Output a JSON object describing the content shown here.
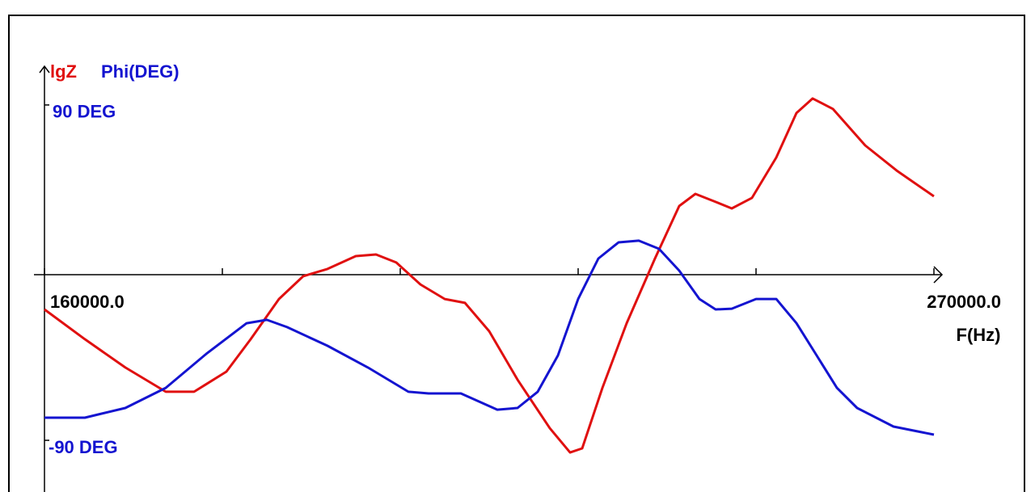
{
  "chart_data": {
    "type": "line",
    "x_label": "F(Hz)",
    "xlim": [
      160000,
      270000
    ],
    "xticks": [
      {
        "value": 160000,
        "label": "160000.0"
      },
      {
        "value": 270000,
        "label": "270000.0"
      }
    ],
    "x_tick_marks": [
      182000,
      204000,
      226000,
      248000
    ],
    "ylim": [
      -109.5,
      142.0
    ],
    "yticks": [
      {
        "value": 90,
        "label": "90 DEG"
      },
      {
        "value": -90,
        "label": "-90 DEG"
      }
    ],
    "series": [
      {
        "name": "lgZ",
        "color": "#e01010",
        "x": [
          160000,
          165000,
          170000,
          175000,
          178500,
          182500,
          185500,
          189000,
          192000,
          195000,
          198500,
          201000,
          203500,
          206500,
          209500,
          212000,
          215000,
          218500,
          222500,
          225000,
          226500,
          229000,
          232000,
          235500,
          238500,
          240500,
          243000,
          245000,
          247500,
          250500,
          253000,
          255000,
          257500,
          261500,
          265500,
          270000
        ],
        "values": [
          -15.4,
          -31.4,
          -46.6,
          -59.6,
          -59.6,
          -48.8,
          -31.4,
          -9.8,
          2.4,
          6.3,
          13.2,
          14.1,
          9.8,
          -2.0,
          -9.8,
          -11.9,
          -27.1,
          -53.1,
          -79.2,
          -92.2,
          -90.0,
          -57.5,
          -22.8,
          11.9,
          40.1,
          46.6,
          42.3,
          38.8,
          44.5,
          66.1,
          90.0,
          97.8,
          92.2,
          72.6,
          58.8,
          45.3
        ]
      },
      {
        "name": "Phi(DEG)",
        "color": "#1414d0",
        "x": [
          160000,
          165000,
          170000,
          175000,
          180000,
          185000,
          187500,
          190000,
          195000,
          200000,
          205000,
          207500,
          211500,
          216000,
          218500,
          221000,
          223500,
          226000,
          228500,
          231000,
          233500,
          236000,
          238500,
          241000,
          243000,
          245000,
          248000,
          250500,
          253000,
          255500,
          258000,
          260500,
          265000,
          270000
        ],
        "values": [
          -73.5,
          -73.5,
          -68.3,
          -57.5,
          -39.3,
          -22.8,
          -21.0,
          -24.9,
          -34.9,
          -46.6,
          -59.6,
          -60.5,
          -60.5,
          -69.2,
          -68.3,
          -59.6,
          -40.1,
          -9.8,
          11.9,
          20.6,
          21.5,
          17.1,
          5.4,
          -9.8,
          -15.4,
          -15.0,
          -9.8,
          -9.8,
          -22.8,
          -40.1,
          -57.5,
          -68.3,
          -78.3,
          -82.6
        ]
      }
    ]
  }
}
